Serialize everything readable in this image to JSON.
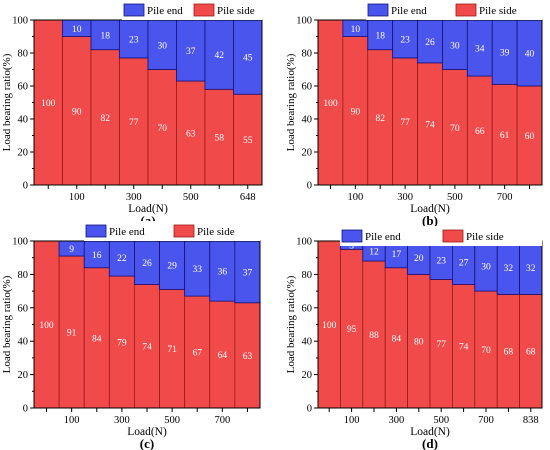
{
  "colors": {
    "pile_side": "#f04a4a",
    "pile_side_edge": "#9e1a1a",
    "pile_end": "#4a55ee",
    "pile_end_edge": "#12127a",
    "axis": "#000000",
    "label_text": "#ffffff"
  },
  "chart_data": [
    {
      "type": "bar",
      "stacked": true,
      "panel_label": "(a)",
      "xlabel": "Load(N)",
      "ylabel": "Load bearing ratio(%)",
      "ylim": [
        0,
        100
      ],
      "yticks": [
        0,
        20,
        40,
        60,
        80,
        100
      ],
      "xtick_labels": [
        "",
        "100",
        "",
        "300",
        "",
        "500",
        "",
        "648"
      ],
      "legend_position": "top-right",
      "series": [
        {
          "name": "Pile side",
          "values": [
            100,
            90,
            82,
            77,
            70,
            63,
            58,
            55
          ]
        },
        {
          "name": "Pile end",
          "values": [
            0,
            10,
            18,
            23,
            30,
            37,
            42,
            45
          ]
        }
      ]
    },
    {
      "type": "bar",
      "stacked": true,
      "panel_label": "(b)",
      "xlabel": "Load(N)",
      "ylabel": "Load bearing ratio(%)",
      "ylim": [
        0,
        100
      ],
      "yticks": [
        0,
        20,
        40,
        60,
        80,
        100
      ],
      "xtick_labels": [
        "",
        "100",
        "",
        "300",
        "",
        "500",
        "",
        "700",
        ""
      ],
      "legend_position": "top-right",
      "series": [
        {
          "name": "Pile side",
          "values": [
            100,
            90,
            82,
            77,
            74,
            70,
            66,
            61,
            60
          ]
        },
        {
          "name": "Pile end",
          "values": [
            0,
            10,
            18,
            23,
            26,
            30,
            34,
            39,
            40
          ]
        }
      ]
    },
    {
      "type": "bar",
      "stacked": true,
      "panel_label": "(c)",
      "xlabel": "Load(N)",
      "ylabel": "Load bearing ratio(%)",
      "ylim": [
        0,
        100
      ],
      "yticks": [
        0,
        20,
        40,
        60,
        80,
        100
      ],
      "xtick_labels": [
        "",
        "100",
        "",
        "300",
        "",
        "500",
        "",
        "700",
        ""
      ],
      "legend_position": "top-right",
      "series": [
        {
          "name": "Pile side",
          "values": [
            100,
            91,
            84,
            79,
            74,
            71,
            67,
            64,
            63
          ]
        },
        {
          "name": "Pile end",
          "values": [
            0,
            9,
            16,
            22,
            26,
            29,
            33,
            36,
            37
          ]
        }
      ]
    },
    {
      "type": "bar",
      "stacked": true,
      "panel_label": "(d)",
      "xlabel": "Load(N)",
      "ylabel": "Load bearing ratio(%)",
      "ylim": [
        0,
        100
      ],
      "yticks": [
        0,
        20,
        40,
        60,
        80,
        100
      ],
      "xtick_labels": [
        "",
        "100",
        "",
        "300",
        "",
        "500",
        "",
        "700",
        "",
        "838"
      ],
      "legend_position": "top-right",
      "series": [
        {
          "name": "Pile side",
          "values": [
            100,
            95,
            88,
            84,
            80,
            77,
            74,
            70,
            68,
            68
          ]
        },
        {
          "name": "Pile end",
          "values": [
            0,
            5,
            12,
            17,
            20,
            23,
            27,
            30,
            32,
            32
          ]
        }
      ]
    }
  ]
}
